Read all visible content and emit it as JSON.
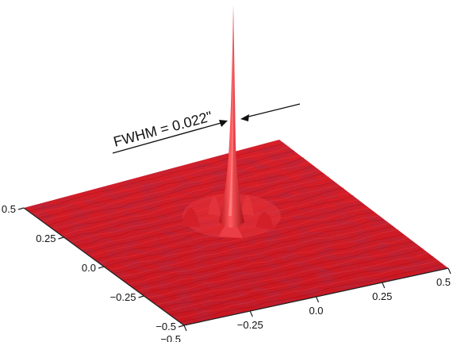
{
  "chart_data": {
    "type": "surface",
    "annotation": "FWHM = 0.022\"",
    "left_axis": {
      "range": [
        -0.5,
        0.5
      ],
      "ticks": [
        0.5,
        0.25,
        0.0,
        -0.25,
        -0.5
      ],
      "tick_labels": [
        "0.5",
        "0.25",
        "0.0",
        "−0.25",
        "−0.5"
      ]
    },
    "right_axis": {
      "range": [
        -0.5,
        0.5
      ],
      "ticks": [
        -0.5,
        -0.25,
        0.0,
        0.25,
        0.5
      ],
      "tick_labels": [
        "−0.5",
        "−0.25",
        "0.0",
        "0.25",
        "0.5"
      ]
    },
    "surface_color": "#e0262c",
    "peak_color": "#ff4a4e",
    "shadow_color": "#9e0d15",
    "grid": false
  }
}
